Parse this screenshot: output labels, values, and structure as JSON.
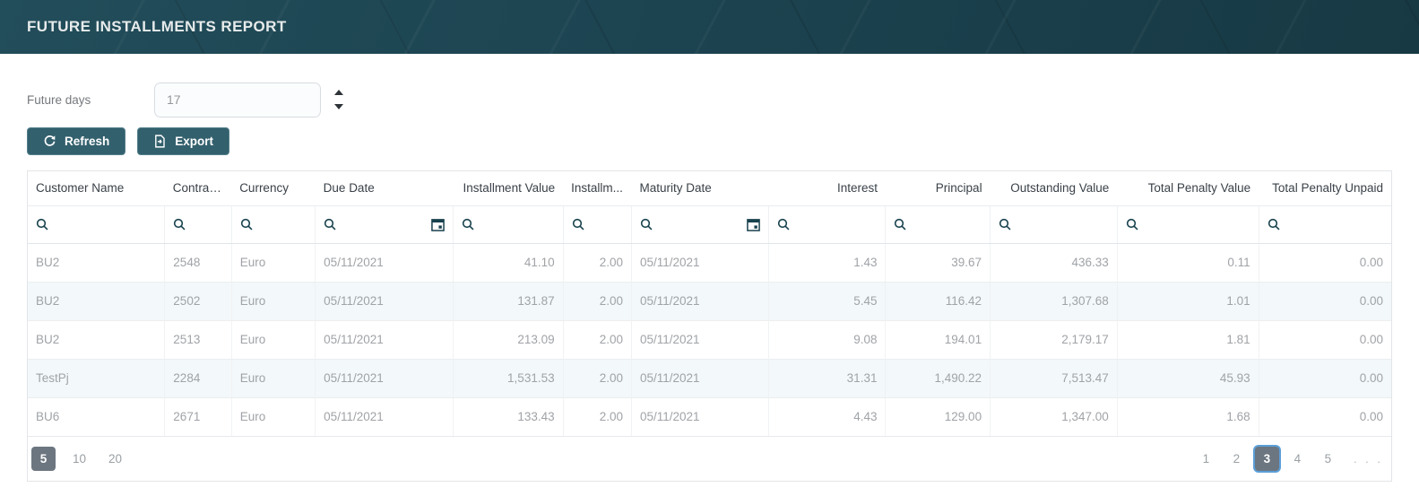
{
  "header": {
    "title": "FUTURE INSTALLMENTS REPORT"
  },
  "controls": {
    "future_days_label": "Future days",
    "future_days_value": "17",
    "refresh_label": "Refresh",
    "export_label": "Export"
  },
  "icons": {
    "refresh_button": "refresh-icon",
    "export_button": "export-file-icon",
    "filter_cell": "search-icon",
    "date_filter_cell": "calendar-icon",
    "spinner_up": "spin-up-icon",
    "spinner_down": "spin-down-icon"
  },
  "table": {
    "columns": [
      {
        "key": "customer-name",
        "label": "Customer Name",
        "header_align": "left",
        "cell_align": "left",
        "calendar": false
      },
      {
        "key": "contract",
        "label": "Contrac...",
        "header_align": "left",
        "cell_align": "left",
        "calendar": false
      },
      {
        "key": "currency",
        "label": "Currency",
        "header_align": "left",
        "cell_align": "left",
        "calendar": false
      },
      {
        "key": "due-date",
        "label": "Due Date",
        "header_align": "left",
        "cell_align": "left",
        "calendar": true
      },
      {
        "key": "installment-value",
        "label": "Installment Value",
        "header_align": "right",
        "cell_align": "right",
        "calendar": false
      },
      {
        "key": "installments",
        "label": "Installm...",
        "header_align": "left",
        "cell_align": "right",
        "calendar": false
      },
      {
        "key": "maturity-date",
        "label": "Maturity Date",
        "header_align": "left",
        "cell_align": "left",
        "calendar": true
      },
      {
        "key": "interest",
        "label": "Interest",
        "header_align": "right",
        "cell_align": "right",
        "calendar": false
      },
      {
        "key": "principal",
        "label": "Principal",
        "header_align": "right",
        "cell_align": "right",
        "calendar": false
      },
      {
        "key": "outstanding-value",
        "label": "Outstanding Value",
        "header_align": "right",
        "cell_align": "right",
        "calendar": false
      },
      {
        "key": "total-penalty-value",
        "label": "Total Penalty Value",
        "header_align": "right",
        "cell_align": "right",
        "calendar": false
      },
      {
        "key": "total-penalty-unpaid",
        "label": "Total Penalty Unpaid",
        "header_align": "right",
        "cell_align": "right",
        "calendar": false
      }
    ],
    "rows": [
      [
        "BU2",
        "2548",
        "Euro",
        "05/11/2021",
        "41.10",
        "2.00",
        "05/11/2021",
        "1.43",
        "39.67",
        "436.33",
        "0.11",
        "0.00"
      ],
      [
        "BU2",
        "2502",
        "Euro",
        "05/11/2021",
        "131.87",
        "2.00",
        "05/11/2021",
        "5.45",
        "116.42",
        "1,307.68",
        "1.01",
        "0.00"
      ],
      [
        "BU2",
        "2513",
        "Euro",
        "05/11/2021",
        "213.09",
        "2.00",
        "05/11/2021",
        "9.08",
        "194.01",
        "2,179.17",
        "1.81",
        "0.00"
      ],
      [
        "TestPj",
        "2284",
        "Euro",
        "05/11/2021",
        "1,531.53",
        "2.00",
        "05/11/2021",
        "31.31",
        "1,490.22",
        "7,513.47",
        "45.93",
        "0.00"
      ],
      [
        "BU6",
        "2671",
        "Euro",
        "05/11/2021",
        "133.43",
        "2.00",
        "05/11/2021",
        "4.43",
        "129.00",
        "1,347.00",
        "1.68",
        "0.00"
      ]
    ]
  },
  "pagination": {
    "page_sizes": [
      "5",
      "10",
      "20"
    ],
    "selected_page_size": "5",
    "pages": [
      "1",
      "2",
      "3",
      "4",
      "5"
    ],
    "selected_page": "3",
    "ellipsis": ". . ."
  },
  "colors": {
    "header_bar": "#1c4350",
    "button_teal": "#33606d",
    "icon_teal": "#17414d",
    "selected_pager_bg": "#6c7680",
    "current_page_ring": "#5b9fd8",
    "stripe_row": "#f3f8fa"
  }
}
